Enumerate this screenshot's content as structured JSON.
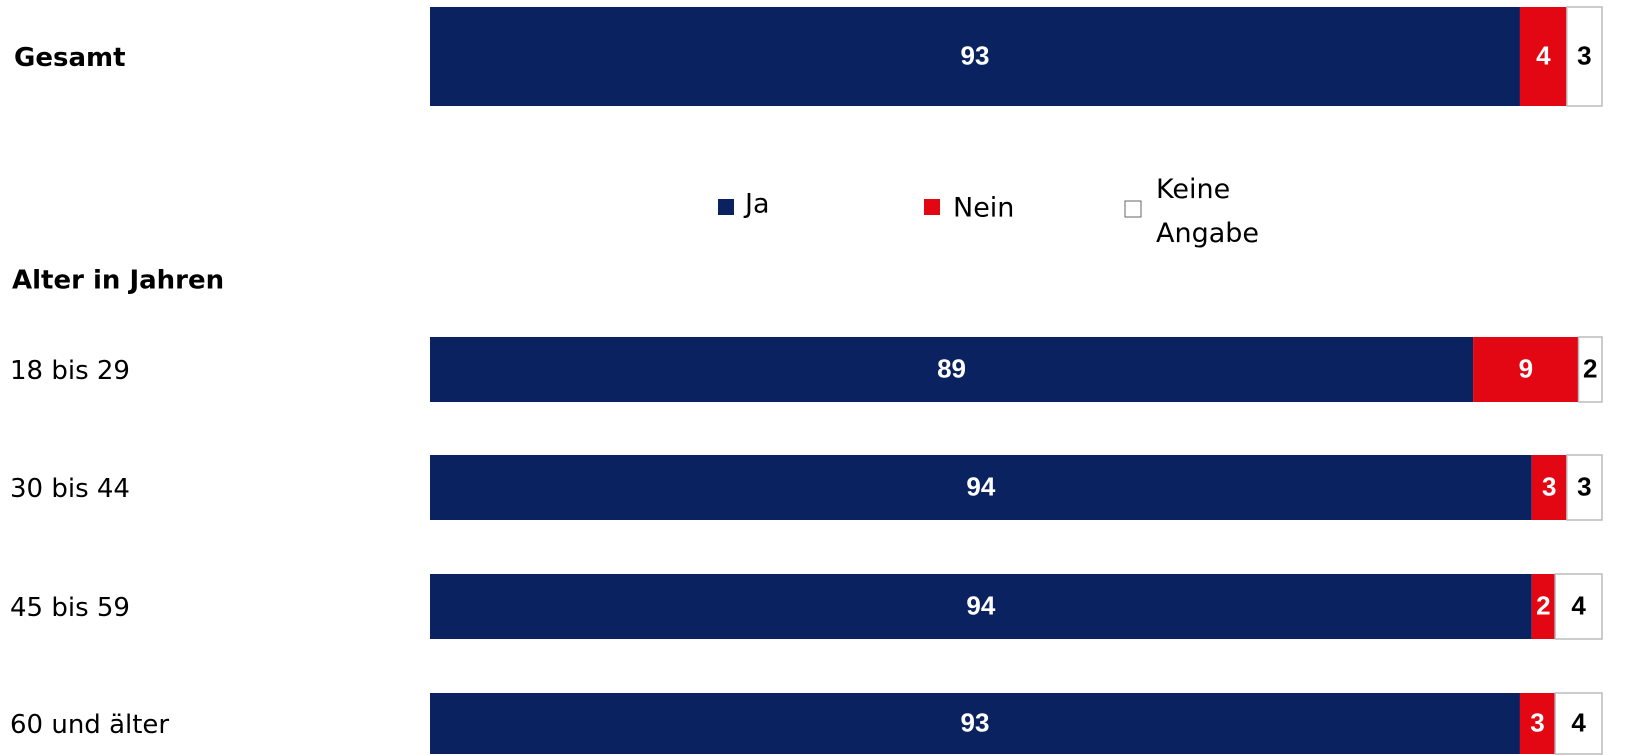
{
  "chart_data": {
    "type": "stacked-barh",
    "section_label": "Alter in Jahren",
    "categories": [
      "Gesamt",
      "18 bis 29",
      "30 bis 44",
      "45 bis 59",
      "60 und älter"
    ],
    "series": [
      {
        "name": "Ja",
        "color": "#0b2260",
        "values": [
          93,
          89,
          94,
          94,
          93
        ]
      },
      {
        "name": "Nein",
        "color": "#e30613",
        "values": [
          4,
          9,
          3,
          2,
          3
        ]
      },
      {
        "name": "Keine Angabe",
        "color": "#ffffff",
        "values": [
          3,
          2,
          3,
          4,
          4
        ]
      }
    ]
  }
}
